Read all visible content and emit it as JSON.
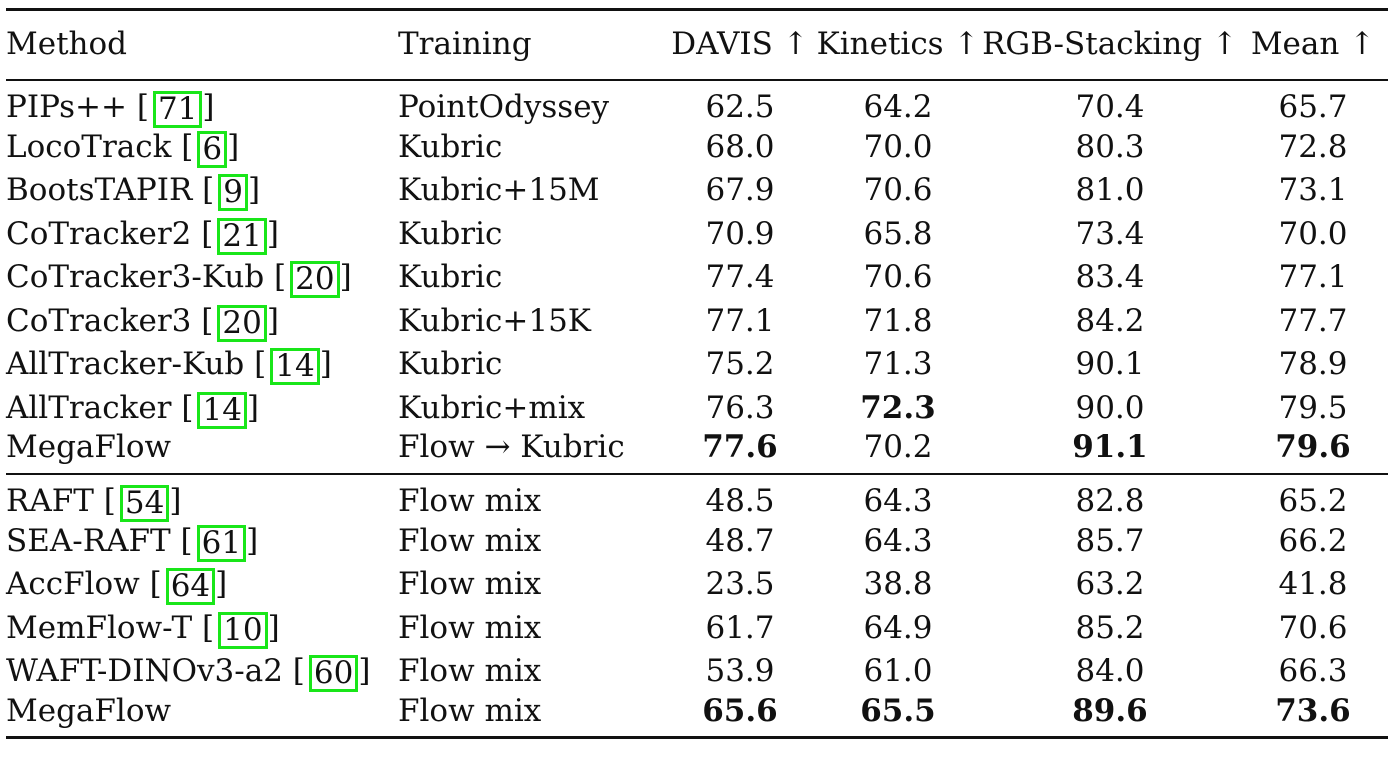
{
  "table": {
    "headers": {
      "method": "Method",
      "training": "Training",
      "davis": "DAVIS ↑",
      "kinetics": "Kinetics ↑",
      "rgb": "RGB-Stacking ↑",
      "mean": "Mean ↑"
    },
    "group1": [
      {
        "method": "PIPs++",
        "cite": "71",
        "training": "PointOdyssey",
        "davis": "62.5",
        "kinetics": "64.2",
        "rgb": "70.4",
        "mean": "65.7"
      },
      {
        "method": "LocoTrack",
        "cite": "6",
        "training": "Kubric",
        "davis": "68.0",
        "kinetics": "70.0",
        "rgb": "80.3",
        "mean": "72.8"
      },
      {
        "method": "BootsTAPIR",
        "cite": "9",
        "training": "Kubric+15M",
        "davis": "67.9",
        "kinetics": "70.6",
        "rgb": "81.0",
        "mean": "73.1"
      },
      {
        "method": "CoTracker2",
        "cite": "21",
        "training": "Kubric",
        "davis": "70.9",
        "kinetics": "65.8",
        "rgb": "73.4",
        "mean": "70.0"
      },
      {
        "method": "CoTracker3-Kub",
        "cite": "20",
        "training": "Kubric",
        "davis": "77.4",
        "kinetics": "70.6",
        "rgb": "83.4",
        "mean": "77.1"
      },
      {
        "method": "CoTracker3",
        "cite": "20",
        "training": "Kubric+15K",
        "davis": "77.1",
        "kinetics": "71.8",
        "rgb": "84.2",
        "mean": "77.7"
      },
      {
        "method": "AllTracker-Kub",
        "cite": "14",
        "training": "Kubric",
        "davis": "75.2",
        "kinetics": "71.3",
        "rgb": "90.1",
        "mean": "78.9"
      },
      {
        "method": "AllTracker",
        "cite": "14",
        "training": "Kubric+mix",
        "davis": "76.3",
        "kinetics": "72.3",
        "rgb": "90.0",
        "mean": "79.5"
      },
      {
        "method": "MegaFlow",
        "cite": "",
        "training": "Flow → Kubric",
        "davis": "77.6",
        "kinetics": "70.2",
        "rgb": "91.1",
        "mean": "79.6"
      }
    ],
    "group2": [
      {
        "method": "RAFT",
        "cite": "54",
        "training": "Flow mix",
        "davis": "48.5",
        "kinetics": "64.3",
        "rgb": "82.8",
        "mean": "65.2"
      },
      {
        "method": "SEA-RAFT",
        "cite": "61",
        "training": "Flow mix",
        "davis": "48.7",
        "kinetics": "64.3",
        "rgb": "85.7",
        "mean": "66.2"
      },
      {
        "method": "AccFlow",
        "cite": "64",
        "training": "Flow mix",
        "davis": "23.5",
        "kinetics": "38.8",
        "rgb": "63.2",
        "mean": "41.8"
      },
      {
        "method": "MemFlow-T",
        "cite": "10",
        "training": "Flow mix",
        "davis": "61.7",
        "kinetics": "64.9",
        "rgb": "85.2",
        "mean": "70.6"
      },
      {
        "method": "WAFT-DINOv3-a2",
        "cite": "60",
        "training": "Flow mix",
        "davis": "53.9",
        "kinetics": "61.0",
        "rgb": "84.0",
        "mean": "66.3"
      },
      {
        "method": "MegaFlow",
        "cite": "",
        "training": "Flow mix",
        "davis": "65.6",
        "kinetics": "65.5",
        "rgb": "89.6",
        "mean": "73.6"
      }
    ]
  }
}
